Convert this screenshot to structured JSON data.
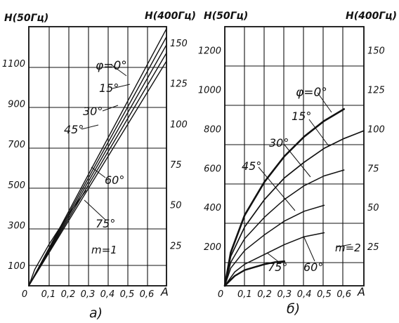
{
  "chart_data": [
    {
      "type": "line",
      "panel_label": "а)",
      "y_left_label": "H(50Гц)",
      "y_right_label": "H(400Гц)",
      "x_unit": "A",
      "x_ticks": [
        "0",
        "0,1",
        "0,2",
        "0,3",
        "0,4",
        "0,5",
        "0,6"
      ],
      "y_left_ticks": [
        "100",
        "300",
        "500",
        "700",
        "900",
        "1100"
      ],
      "y_right_ticks": [
        "25",
        "50",
        "75",
        "100",
        "125",
        "150"
      ],
      "xlim": [
        0,
        0.7
      ],
      "ylim_left": [
        0,
        1280
      ],
      "ylim_right": [
        0,
        160
      ],
      "m_label": "m=1",
      "phi_label": "φ=0°",
      "series": [
        {
          "name": "0°",
          "x": [
            0,
            0.7
          ],
          "y": [
            0,
            1270
          ]
        },
        {
          "name": "15°",
          "x": [
            0,
            0.7
          ],
          "y": [
            0,
            1230
          ]
        },
        {
          "name": "30°",
          "x": [
            0,
            0.7
          ],
          "y": [
            0,
            1190
          ]
        },
        {
          "name": "45°",
          "x": [
            0,
            0.7
          ],
          "y": [
            0,
            1150
          ]
        },
        {
          "name": "60°",
          "x": [
            0,
            0.7
          ],
          "y": [
            0,
            1110
          ]
        },
        {
          "name": "75°",
          "x": [
            0,
            0.03,
            0.1,
            0.2,
            0.29
          ],
          "y": [
            0,
            80,
            200,
            350,
            470
          ]
        }
      ],
      "angle_labels": [
        "15°",
        "30°",
        "45°",
        "60°",
        "75°"
      ]
    },
    {
      "type": "line",
      "panel_label": "б)",
      "y_left_label": "H(50Гц)",
      "y_right_label": "H(400Гц)",
      "x_unit": "A",
      "x_ticks": [
        "0",
        "0,1",
        "0,2",
        "0,3",
        "0,4",
        "0,5",
        "0,6"
      ],
      "y_left_ticks": [
        "200",
        "400",
        "600",
        "800",
        "1000",
        "1200"
      ],
      "y_right_ticks": [
        "25",
        "50",
        "75",
        "100",
        "125",
        "150"
      ],
      "xlim": [
        0,
        0.7
      ],
      "ylim_left": [
        0,
        1320
      ],
      "ylim_right": [
        0,
        165
      ],
      "m_label": "m=2",
      "phi_label": "φ=0°",
      "series": [
        {
          "name": "0°",
          "x": [
            0,
            0.03,
            0.1,
            0.2,
            0.3,
            0.4,
            0.5,
            0.6
          ],
          "y": [
            0,
            170,
            360,
            530,
            660,
            760,
            840,
            900
          ]
        },
        {
          "name": "15°",
          "x": [
            0,
            0.03,
            0.1,
            0.2,
            0.3,
            0.4,
            0.5,
            0.6,
            0.7
          ],
          "y": [
            0,
            150,
            300,
            440,
            550,
            630,
            700,
            750,
            790
          ]
        },
        {
          "name": "30°",
          "x": [
            0,
            0.03,
            0.1,
            0.2,
            0.3,
            0.4,
            0.5,
            0.6
          ],
          "y": [
            0,
            120,
            240,
            350,
            440,
            510,
            560,
            590
          ]
        },
        {
          "name": "45°",
          "x": [
            0,
            0.03,
            0.1,
            0.2,
            0.3,
            0.4,
            0.5
          ],
          "y": [
            0,
            90,
            180,
            260,
            330,
            380,
            410
          ]
        },
        {
          "name": "60°",
          "x": [
            0,
            0.05,
            0.1,
            0.2,
            0.3,
            0.4,
            0.5
          ],
          "y": [
            0,
            70,
            110,
            160,
            210,
            250,
            270
          ]
        },
        {
          "name": "75°",
          "x": [
            0,
            0.05,
            0.1,
            0.2,
            0.25,
            0.3
          ],
          "y": [
            0,
            50,
            80,
            110,
            120,
            125
          ]
        }
      ],
      "angle_labels": [
        "15°",
        "30°",
        "45°",
        "60°",
        "75°"
      ]
    }
  ]
}
